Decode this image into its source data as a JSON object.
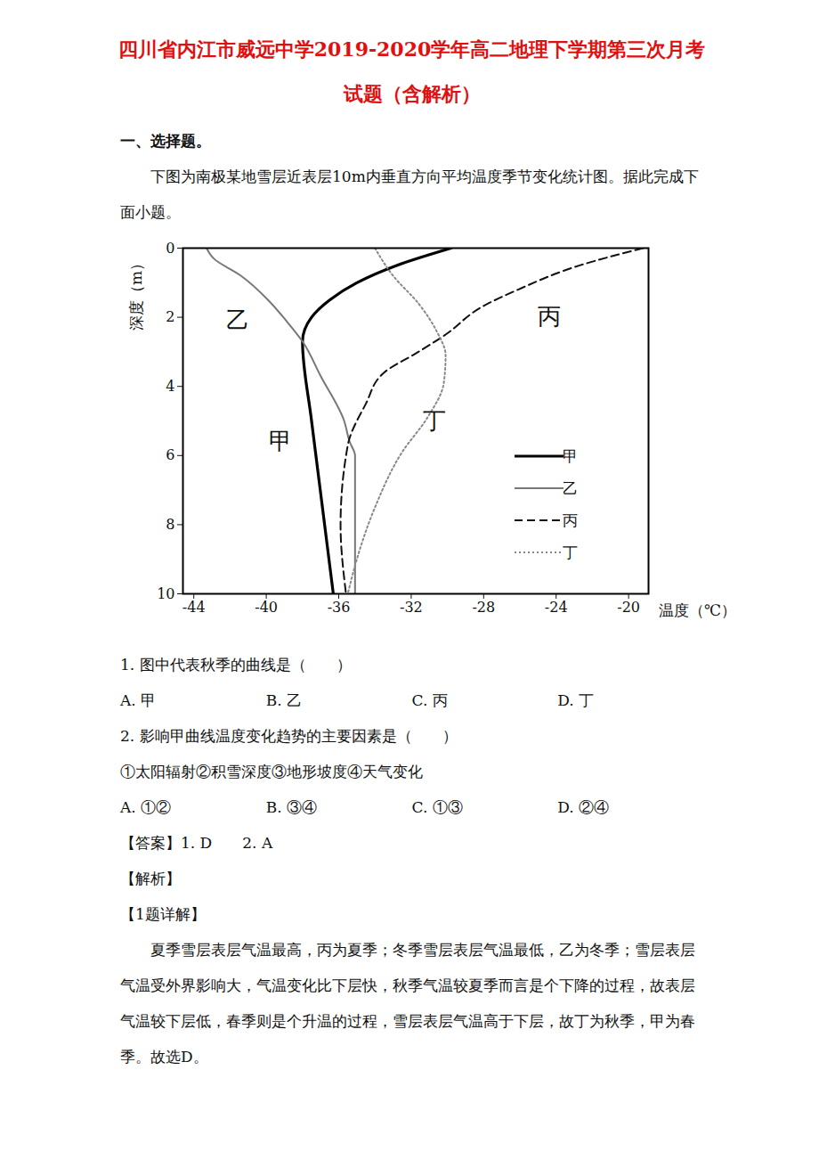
{
  "header": {
    "title": "四川省内江市威远中学2019-2020学年高二地理下学期第三次月考试题（含解析）"
  },
  "section": "一、选择题。",
  "intro": "下图为南极某地雪层近表层10m内垂直方向平均温度季节变化统计图。据此完成下面小题。",
  "chart_data": {
    "type": "line",
    "x_label": "温度（℃）",
    "y_label": "深度（m）",
    "xlim": [
      -44.6,
      -18.9
    ],
    "xticks": [
      -44,
      -40,
      -36,
      -32,
      -28,
      -24,
      -20
    ],
    "ylim": [
      0,
      10
    ],
    "yticks": [
      0,
      2,
      4,
      6,
      8,
      10
    ],
    "legend": "lower right",
    "series": [
      {
        "name": "甲",
        "color": "#000000",
        "line_style": "solid",
        "x": [
          -29.8,
          -32.8,
          -35.0,
          -36.5,
          -37.5,
          -38.0,
          -37.5,
          -36.3
        ],
        "y": [
          0,
          0.5,
          1.0,
          1.5,
          2.0,
          2.7,
          5.0,
          10
        ]
      },
      {
        "name": "乙",
        "color": "#777777",
        "line_style": "solid",
        "x": [
          -43.3,
          -42.9,
          -41.4,
          -39.9,
          -38.9,
          -38.0,
          -37.0,
          -35.7,
          -35.4,
          -35.1,
          -35.1
        ],
        "y": [
          0,
          0.3,
          0.8,
          1.5,
          2.1,
          2.7,
          3.7,
          5.0,
          5.6,
          6.0,
          10
        ]
      },
      {
        "name": "丙",
        "color": "#111111",
        "line_style": "dashed",
        "x": [
          -19.2,
          -22.7,
          -26.1,
          -28.1,
          -30.1,
          -31.6,
          -33.5,
          -34.5,
          -35.5,
          -35.9,
          -35.6
        ],
        "y": [
          0,
          0.5,
          1.2,
          1.7,
          2.5,
          3.0,
          3.6,
          4.5,
          5.7,
          8.0,
          10
        ]
      },
      {
        "name": "丁",
        "color": "#888888",
        "line_style": "dotted",
        "x": [
          -34.0,
          -33.0,
          -31.6,
          -30.6,
          -30.1,
          -30.2,
          -31.1,
          -32.5,
          -34.0,
          -35.0,
          -35.5
        ],
        "y": [
          0,
          0.8,
          1.6,
          2.4,
          3.1,
          3.9,
          4.9,
          5.9,
          7.5,
          9.0,
          10
        ]
      }
    ],
    "annotations": [
      {
        "text": "乙",
        "x": -41.6,
        "y": 2.1
      },
      {
        "text": "丙",
        "x": -24.4,
        "y": 2.0
      },
      {
        "text": "丁",
        "x": -30.7,
        "y": 5.0
      },
      {
        "text": "甲",
        "x": -39.2,
        "y": 5.6
      }
    ]
  },
  "questions": [
    {
      "stem": "1. 图中代表秋季的曲线是（　　）",
      "options": [
        "A. 甲",
        "B. 乙",
        "C. 丙",
        "D. 丁"
      ]
    },
    {
      "stem": "2. 影响甲曲线温度变化趋势的主要因素是（　　）",
      "note": "①太阳辐射②积雪深度③地形坡度④天气变化",
      "options": [
        "A. ①②",
        "B. ③④",
        "C. ①③",
        "D. ②④"
      ]
    }
  ],
  "answer": "【答案】1. D　　2. A",
  "analysis_heading": "【解析】",
  "detail_heading": "【1题详解】",
  "detail": "夏季雪层表层气温最高，丙为夏季；冬季雪层表层气温最低，乙为冬季；雪层表层气温受外界影响大，气温变化比下层快，秋季气温较夏季而言是个下降的过程，故表层气温较下层低，春季则是个升温的过程，雪层表层气温高于下层，故丁为秋季，甲为春季。故选D。"
}
